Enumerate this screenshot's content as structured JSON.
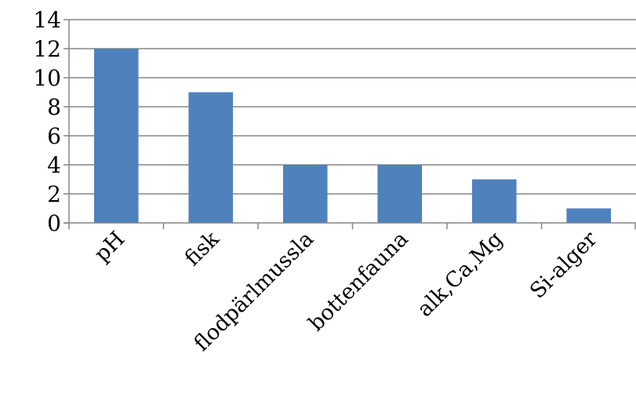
{
  "chart_data": {
    "type": "bar",
    "categories": [
      "pH",
      "fisk",
      "flodpärlmussla",
      "bottenfauna",
      "alk,Ca,Mg",
      "Si-alger"
    ],
    "values": [
      12,
      9,
      4,
      4,
      3,
      1
    ],
    "title": "",
    "xlabel": "",
    "ylabel": "",
    "ylim": [
      0,
      14
    ],
    "yticks": [
      0,
      2,
      4,
      6,
      8,
      10,
      12,
      14
    ],
    "grid": true,
    "legend": "none",
    "colors": {
      "bar": "#4f81bd",
      "grid": "#868686",
      "axis": "#868686"
    }
  }
}
